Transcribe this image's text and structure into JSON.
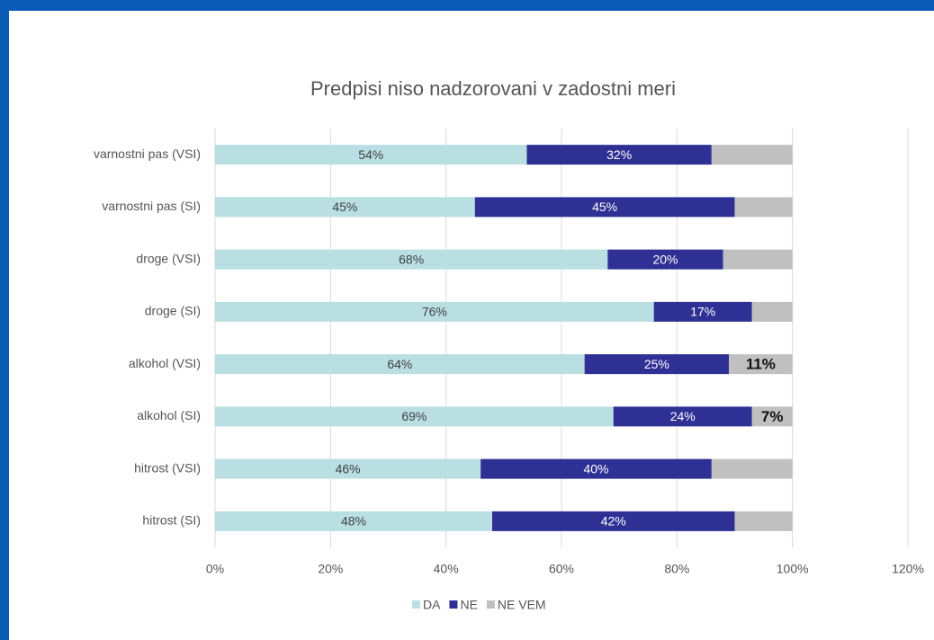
{
  "chart_data": {
    "type": "bar",
    "orientation": "horizontal",
    "stacked": true,
    "title": "Predpisi niso nadzorovani  v zadostni meri",
    "categories": [
      "varnostni pas (VSI)",
      "varnostni pas (SI)",
      "droge (VSI)",
      "droge (SI)",
      "alkohol (VSI)",
      "alkohol (SI)",
      "hitrost (VSI)",
      "hitrost (SI)"
    ],
    "series": [
      {
        "name": "DA",
        "color": "#b9dfe3",
        "label_color": "#404040",
        "values": [
          54,
          45,
          68,
          76,
          64,
          69,
          46,
          48
        ],
        "value_labels": [
          "54%",
          "45%",
          "68%",
          "76%",
          "64%",
          "69%",
          "46%",
          "48%"
        ]
      },
      {
        "name": "NE",
        "color": "#2f3094",
        "label_color": "#ffffff",
        "values": [
          32,
          45,
          20,
          17,
          25,
          24,
          40,
          42
        ],
        "value_labels": [
          "32%",
          "45%",
          "20%",
          "17%",
          "25%",
          "24%",
          "40%",
          "42%"
        ]
      },
      {
        "name": "NE VEM",
        "color": "#c0c0c0",
        "label_color": "#111111",
        "values": [
          14,
          10,
          12,
          7,
          11,
          7,
          14,
          10
        ],
        "value_labels": [
          null,
          null,
          null,
          null,
          "11%",
          "7%",
          null,
          null
        ]
      }
    ],
    "xlim": [
      0,
      120
    ],
    "xticks": [
      {
        "value": 0,
        "label": "0%"
      },
      {
        "value": 20,
        "label": "20%"
      },
      {
        "value": 40,
        "label": "40%"
      },
      {
        "value": 60,
        "label": "60%"
      },
      {
        "value": 80,
        "label": "80%"
      },
      {
        "value": 100,
        "label": "100%"
      },
      {
        "value": 120,
        "label": "120%"
      }
    ],
    "grid": true,
    "legend": "bottom"
  }
}
